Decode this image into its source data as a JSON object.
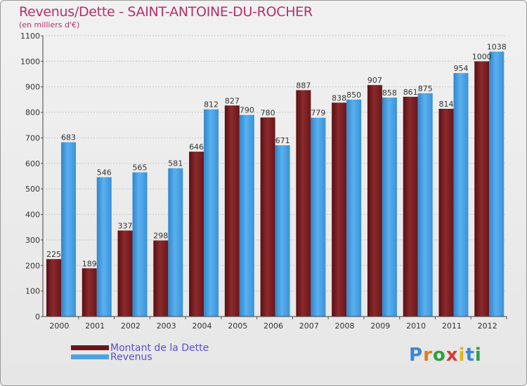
{
  "header": {
    "title": "Revenus/Dette - SAINT-ANTOINE-DU-ROCHER",
    "subtitle": "(en milliers d'€)"
  },
  "colors": {
    "title": "#b5306a",
    "dette": "#7a1f22",
    "revenus": "#4aa3e6",
    "legend_text": "#5a4fcf",
    "grid": "#c8c8c8"
  },
  "chart_data": {
    "type": "bar",
    "categories": [
      "2000",
      "2001",
      "2002",
      "2003",
      "2004",
      "2005",
      "2006",
      "2007",
      "2008",
      "2009",
      "2010",
      "2011",
      "2012"
    ],
    "series": [
      {
        "name": "Montant de la Dette",
        "values": [
          225,
          189,
          337,
          298,
          646,
          827,
          780,
          887,
          838,
          907,
          861,
          814,
          1000
        ]
      },
      {
        "name": "Revenus",
        "values": [
          683,
          546,
          565,
          581,
          812,
          790,
          671,
          779,
          850,
          858,
          875,
          954,
          1038
        ]
      }
    ],
    "ylim": [
      0,
      1100
    ],
    "yticks": [
      0,
      100,
      200,
      300,
      400,
      500,
      600,
      700,
      800,
      900,
      1000,
      1100
    ],
    "grid": true,
    "legend_position": "bottom-left"
  },
  "logo": {
    "letters": [
      "P",
      "r",
      "o",
      "x",
      "i",
      "t",
      "i"
    ],
    "colors": [
      "#3a86d6",
      "#e37b1d",
      "#2f9e44",
      "#d63a3a",
      "#e3b51d",
      "#3a86d6",
      "#2f9e44"
    ]
  }
}
